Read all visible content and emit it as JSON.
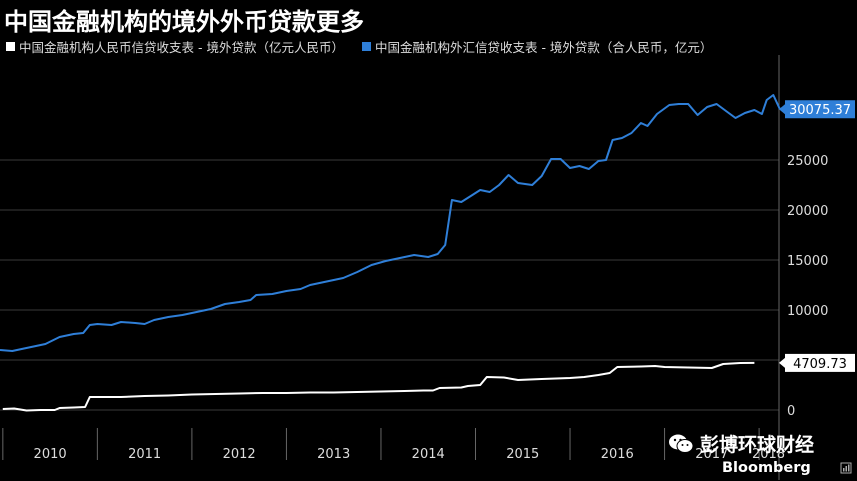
{
  "title": "中国金融机构的境外外币贷款更多",
  "watermark": {
    "text": "彭博环球财经",
    "icon": "wechat-icon"
  },
  "brand": {
    "text": "Bloomberg",
    "icon": "bloomberg-terminal-icon"
  },
  "colors": {
    "background": "#000000",
    "series_rmb": "#ffffff",
    "series_fx": "#2f7fd8",
    "grid": "#3a3a3a"
  },
  "chart_data": {
    "type": "line",
    "title": "中国金融机构的境外外币贷款更多",
    "x_categories": [
      "2010",
      "2011",
      "2012",
      "2013",
      "2014",
      "2015",
      "2016",
      "2017",
      "2018"
    ],
    "x_range": [
      2009.97,
      2018.2
    ],
    "ylim": [
      -1800,
      35000
    ],
    "yticks": [
      0,
      5000,
      10000,
      15000,
      20000,
      25000
    ],
    "grid": true,
    "legend_position": "top-left",
    "series": [
      {
        "name": "中国金融机构人民币信贷收支表 - 境外贷款（亿元人民币）",
        "last_value_label": "4709.73",
        "points": [
          [
            2010.0,
            100
          ],
          [
            2010.12,
            150
          ],
          [
            2010.25,
            -50
          ],
          [
            2010.4,
            0
          ],
          [
            2010.55,
            0
          ],
          [
            2010.6,
            200
          ],
          [
            2010.75,
            250
          ],
          [
            2010.87,
            300
          ],
          [
            2010.92,
            1300
          ],
          [
            2011.0,
            1300
          ],
          [
            2011.25,
            1300
          ],
          [
            2011.5,
            1400
          ],
          [
            2011.75,
            1450
          ],
          [
            2012.0,
            1550
          ],
          [
            2012.25,
            1600
          ],
          [
            2012.5,
            1650
          ],
          [
            2012.75,
            1700
          ],
          [
            2013.0,
            1700
          ],
          [
            2013.25,
            1750
          ],
          [
            2013.5,
            1750
          ],
          [
            2013.75,
            1800
          ],
          [
            2014.0,
            1850
          ],
          [
            2014.25,
            1900
          ],
          [
            2014.45,
            1950
          ],
          [
            2014.55,
            1950
          ],
          [
            2014.62,
            2200
          ],
          [
            2014.85,
            2250
          ],
          [
            2014.92,
            2400
          ],
          [
            2015.05,
            2500
          ],
          [
            2015.12,
            3300
          ],
          [
            2015.3,
            3250
          ],
          [
            2015.45,
            3000
          ],
          [
            2015.7,
            3100
          ],
          [
            2016.0,
            3200
          ],
          [
            2016.15,
            3300
          ],
          [
            2016.3,
            3500
          ],
          [
            2016.42,
            3700
          ],
          [
            2016.5,
            4300
          ],
          [
            2016.75,
            4350
          ],
          [
            2016.9,
            4400
          ],
          [
            2017.0,
            4300
          ],
          [
            2017.25,
            4250
          ],
          [
            2017.5,
            4200
          ],
          [
            2017.62,
            4600
          ],
          [
            2017.8,
            4700
          ],
          [
            2017.95,
            4709.73
          ]
        ]
      },
      {
        "name": "中国金融机构外汇信贷收支表 - 境外贷款（合人民币，亿元）",
        "last_value_label": "30075.37",
        "points": [
          [
            2009.97,
            6000
          ],
          [
            2010.1,
            5900
          ],
          [
            2010.2,
            6100
          ],
          [
            2010.3,
            6300
          ],
          [
            2010.45,
            6600
          ],
          [
            2010.6,
            7300
          ],
          [
            2010.75,
            7600
          ],
          [
            2010.85,
            7700
          ],
          [
            2010.92,
            8500
          ],
          [
            2011.0,
            8600
          ],
          [
            2011.15,
            8500
          ],
          [
            2011.25,
            8800
          ],
          [
            2011.4,
            8700
          ],
          [
            2011.5,
            8600
          ],
          [
            2011.6,
            9000
          ],
          [
            2011.75,
            9300
          ],
          [
            2011.9,
            9500
          ],
          [
            2012.05,
            9800
          ],
          [
            2012.2,
            10100
          ],
          [
            2012.35,
            10600
          ],
          [
            2012.5,
            10800
          ],
          [
            2012.62,
            11000
          ],
          [
            2012.68,
            11500
          ],
          [
            2012.85,
            11600
          ],
          [
            2013.0,
            11900
          ],
          [
            2013.15,
            12100
          ],
          [
            2013.25,
            12500
          ],
          [
            2013.45,
            12900
          ],
          [
            2013.6,
            13200
          ],
          [
            2013.75,
            13800
          ],
          [
            2013.9,
            14500
          ],
          [
            2014.05,
            14900
          ],
          [
            2014.2,
            15200
          ],
          [
            2014.35,
            15500
          ],
          [
            2014.5,
            15300
          ],
          [
            2014.6,
            15600
          ],
          [
            2014.68,
            16500
          ],
          [
            2014.75,
            21000
          ],
          [
            2014.85,
            20800
          ],
          [
            2014.95,
            21400
          ],
          [
            2015.05,
            22000
          ],
          [
            2015.15,
            21800
          ],
          [
            2015.25,
            22500
          ],
          [
            2015.35,
            23500
          ],
          [
            2015.45,
            22700
          ],
          [
            2015.6,
            22500
          ],
          [
            2015.7,
            23400
          ],
          [
            2015.8,
            25100
          ],
          [
            2015.9,
            25100
          ],
          [
            2016.0,
            24200
          ],
          [
            2016.1,
            24400
          ],
          [
            2016.2,
            24100
          ],
          [
            2016.3,
            24900
          ],
          [
            2016.38,
            25000
          ],
          [
            2016.45,
            27000
          ],
          [
            2016.55,
            27200
          ],
          [
            2016.65,
            27700
          ],
          [
            2016.75,
            28700
          ],
          [
            2016.82,
            28400
          ],
          [
            2016.92,
            29600
          ],
          [
            2017.05,
            30500
          ],
          [
            2017.15,
            30600
          ],
          [
            2017.25,
            30600
          ],
          [
            2017.35,
            29500
          ],
          [
            2017.45,
            30300
          ],
          [
            2017.55,
            30600
          ],
          [
            2017.65,
            29900
          ],
          [
            2017.75,
            29200
          ],
          [
            2017.85,
            29700
          ],
          [
            2017.95,
            30000
          ],
          [
            2018.03,
            29600
          ],
          [
            2018.08,
            31000
          ],
          [
            2018.15,
            31500
          ],
          [
            2018.22,
            30075.37
          ]
        ]
      }
    ]
  }
}
